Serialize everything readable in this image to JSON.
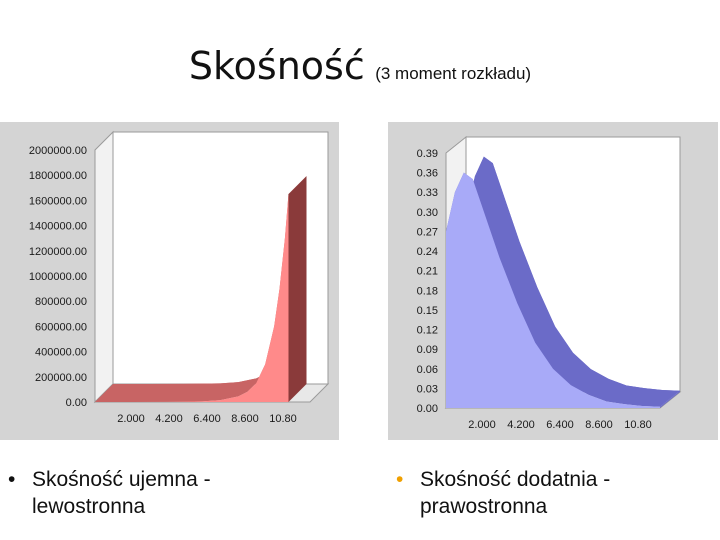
{
  "title": {
    "main": "Skośność",
    "sub": "(3 moment rozkładu)"
  },
  "colors": {
    "panel_bg": "#d4d4d4",
    "left_front": "#ff8a8a",
    "left_side": "#8a3a3a",
    "left_floor": "#c86464",
    "right_front": "#a8aaf8",
    "right_back": "#6b6bc8",
    "bullet_left": "#111111",
    "bullet_right": "#f0a000"
  },
  "bullets": {
    "left": {
      "line1": "Skośność ujemna -",
      "line2": "lewostronna"
    },
    "right": {
      "line1": "Skośność dodatnia -",
      "line2": "prawostronna"
    }
  },
  "chart_data": [
    {
      "type": "area",
      "y_ticks": [
        "2000000.00",
        "1800000.00",
        "1600000.00",
        "1400000.00",
        "1200000.00",
        "1000000.00",
        "800000.00",
        "600000.00",
        "400000.00",
        "200000.00",
        "0.00"
      ],
      "x_ticks": [
        "2.000",
        "4.200",
        "6.400",
        "8.600",
        "10.80"
      ],
      "ylim": [
        0,
        2000000
      ],
      "xlim": [
        0,
        12
      ],
      "x": [
        0,
        2,
        4,
        6,
        7,
        8,
        8.5,
        9,
        9.5,
        10,
        10.3,
        10.6,
        10.8
      ],
      "values": [
        0,
        200,
        1000,
        5000,
        15000,
        45000,
        80000,
        150000,
        300000,
        600000,
        900000,
        1300000,
        1650000
      ],
      "grid": false
    },
    {
      "type": "area",
      "y_ticks": [
        "0.39",
        "0.36",
        "0.33",
        "0.30",
        "0.27",
        "0.24",
        "0.21",
        "0.18",
        "0.15",
        "0.12",
        "0.09",
        "0.06",
        "0.03",
        "0.00"
      ],
      "x_ticks": [
        "2.000",
        "4.200",
        "6.400",
        "8.600",
        "10.80"
      ],
      "ylim": [
        0,
        0.39
      ],
      "xlim": [
        0,
        12
      ],
      "x": [
        0,
        0.5,
        1,
        1.5,
        2,
        3,
        4,
        5,
        6,
        7,
        8,
        9,
        10,
        11,
        12
      ],
      "values": [
        0.27,
        0.33,
        0.36,
        0.35,
        0.31,
        0.23,
        0.16,
        0.1,
        0.06,
        0.035,
        0.02,
        0.01,
        0.006,
        0.003,
        0.002
      ],
      "grid": false
    }
  ]
}
